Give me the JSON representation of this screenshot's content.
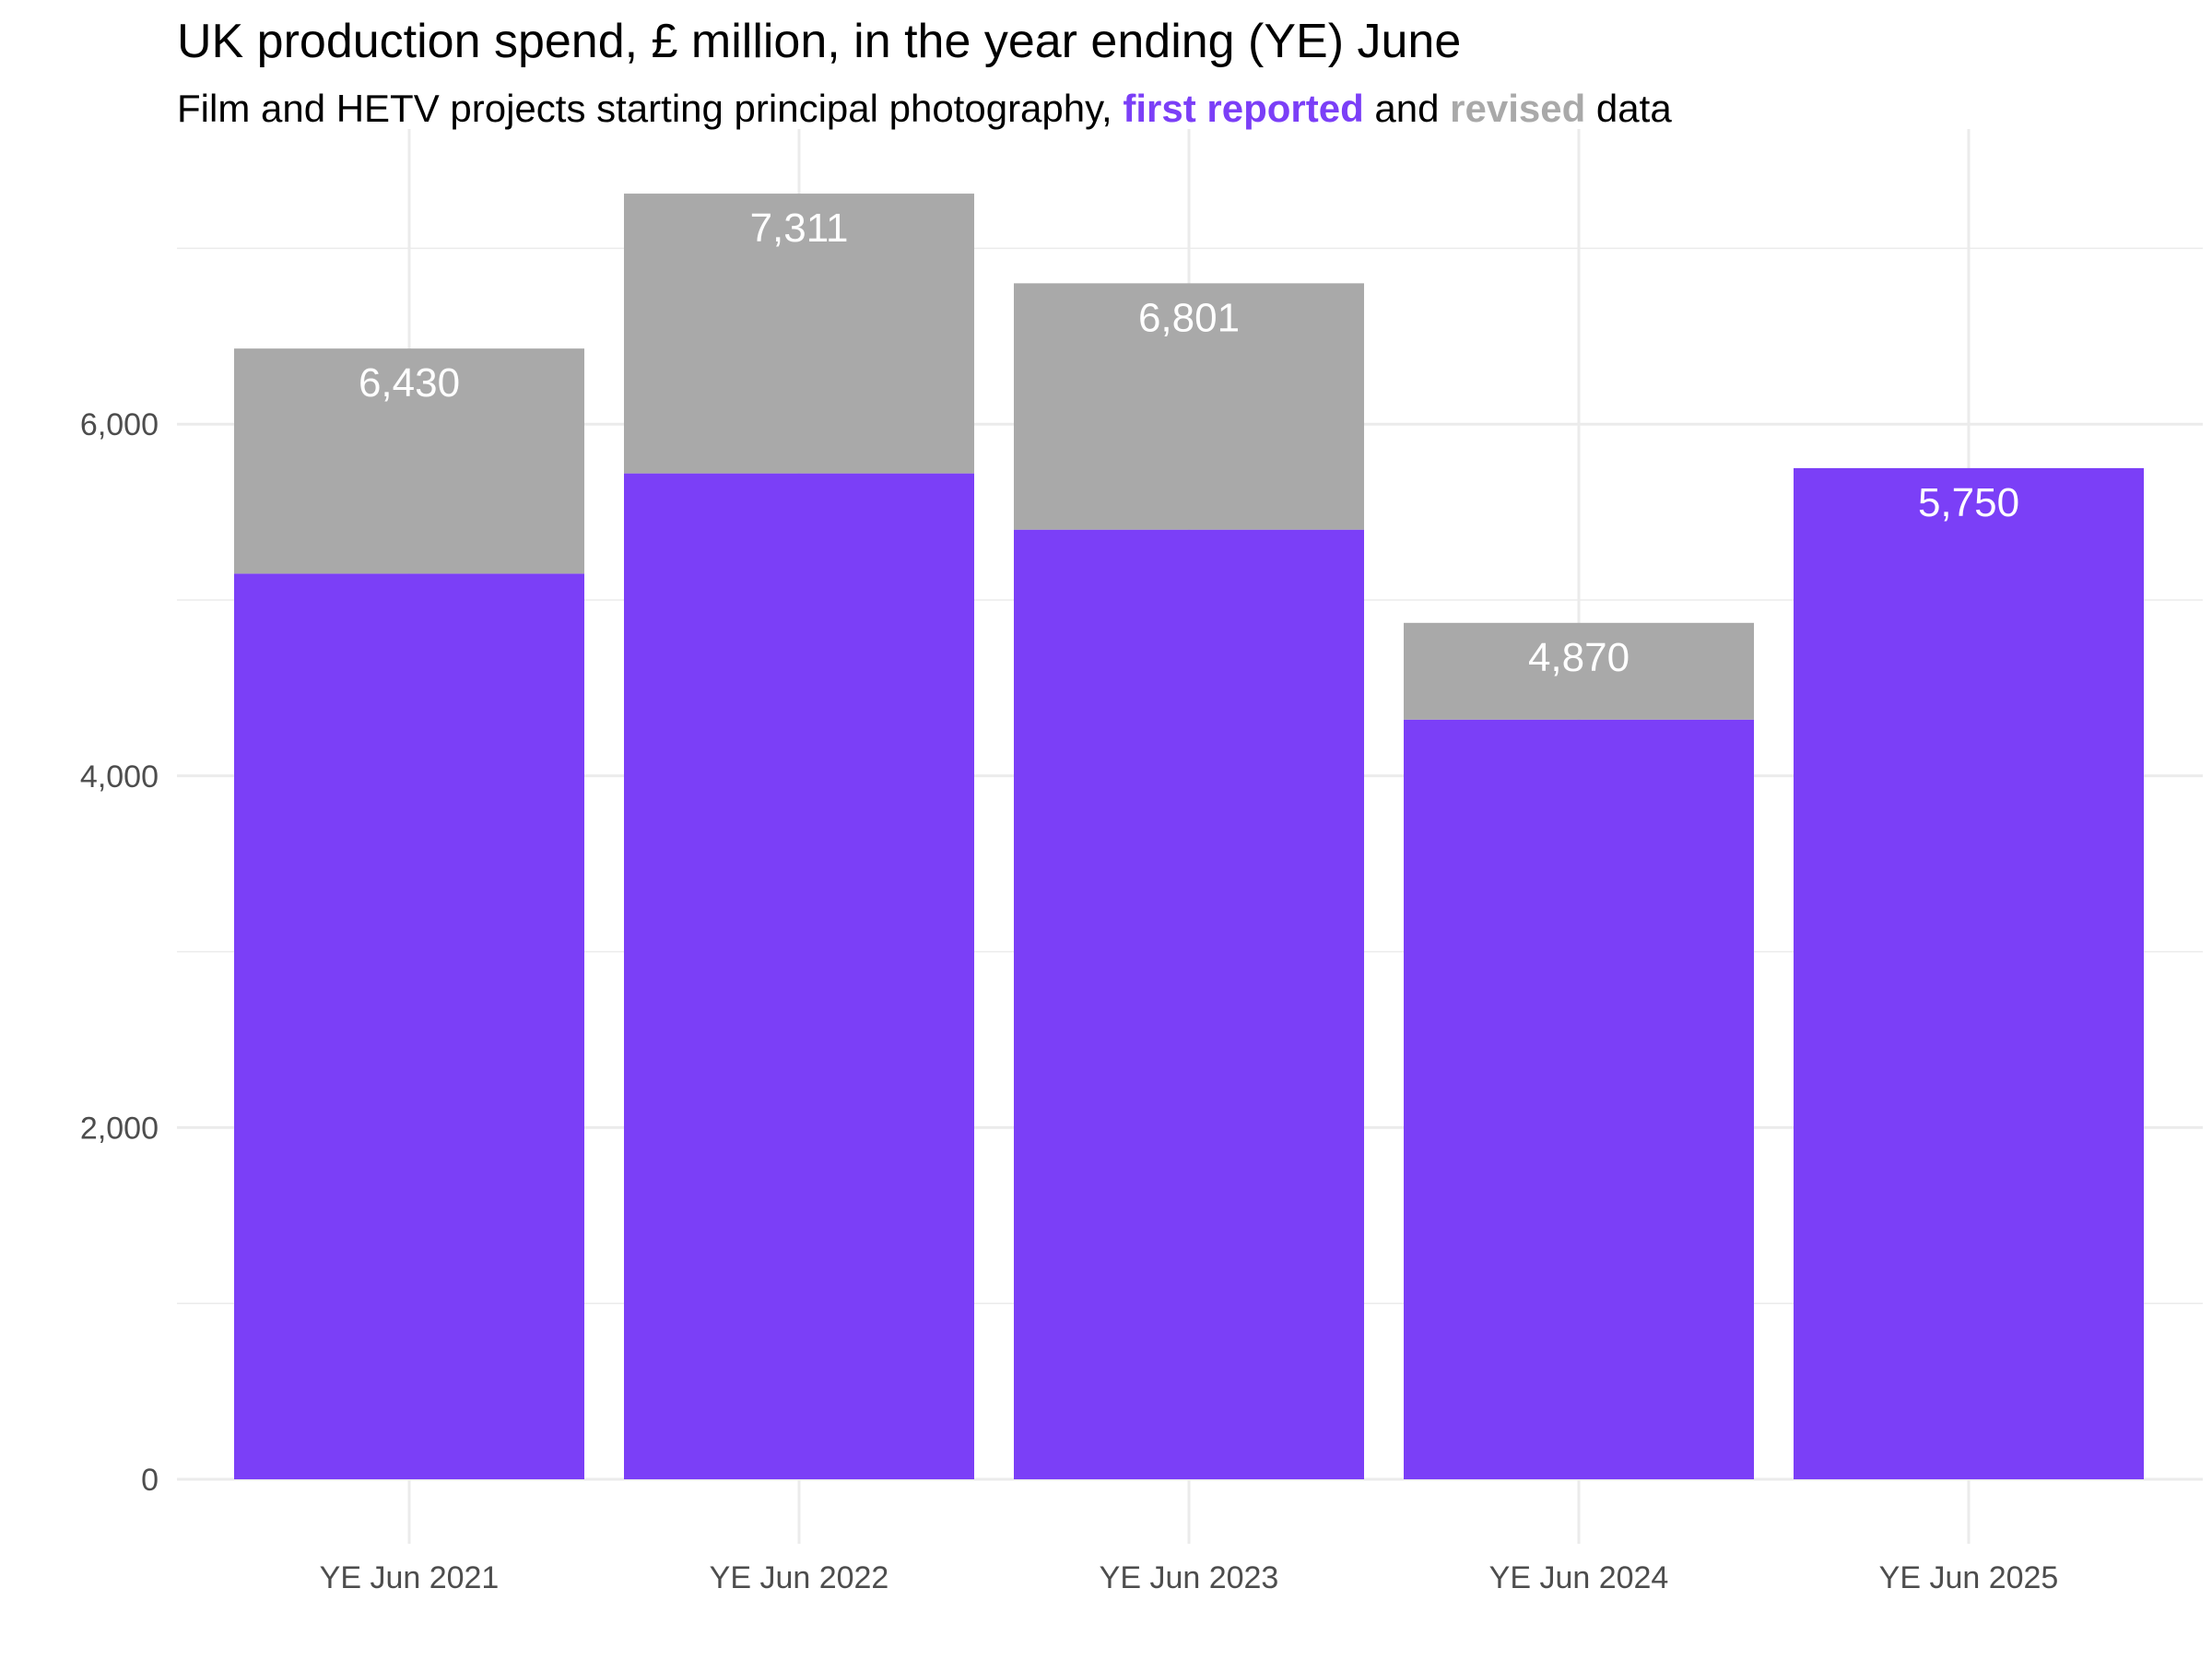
{
  "chart_data": {
    "type": "bar",
    "stacking": "stacked",
    "title": "UK production spend, £ million, in the year ending (YE) June",
    "subtitle": {
      "prefix": "Film and HETV projects starting principal photography, ",
      "first_reported": "first reported",
      "middle": " and ",
      "revised": "revised",
      "suffix": " data"
    },
    "xlabel": "",
    "ylabel": "",
    "ylim": [
      0,
      7700
    ],
    "yticks": [
      0,
      2000,
      4000,
      6000
    ],
    "ytick_labels": [
      "0",
      "2,000",
      "4,000",
      "6,000"
    ],
    "minor_gridlines": [
      1000,
      3000,
      5000,
      7000
    ],
    "grid": true,
    "legend": "none (colour key in subtitle)",
    "categories": [
      "YE Jun 2021",
      "YE Jun 2022",
      "YE Jun 2023",
      "YE Jun 2024",
      "YE Jun 2025"
    ],
    "series": [
      {
        "name": "first reported",
        "color": "#7b3ff7",
        "values": [
          5150,
          5720,
          5400,
          4320,
          5750
        ]
      },
      {
        "name": "revised",
        "color": "#a9a9a9",
        "values": [
          1280,
          1591,
          1401,
          550,
          0
        ]
      }
    ],
    "totals": [
      6430,
      7311,
      6801,
      4870,
      5750
    ],
    "total_labels": [
      "6,430",
      "7,311",
      "6,801",
      "4,870",
      "5,750"
    ]
  },
  "colors": {
    "first_reported": "#7b3ff7",
    "revised": "#a9a9a9",
    "grid": "#ebebeb",
    "tick_text": "#4d4d4d",
    "bar_label_text": "#ffffff"
  }
}
